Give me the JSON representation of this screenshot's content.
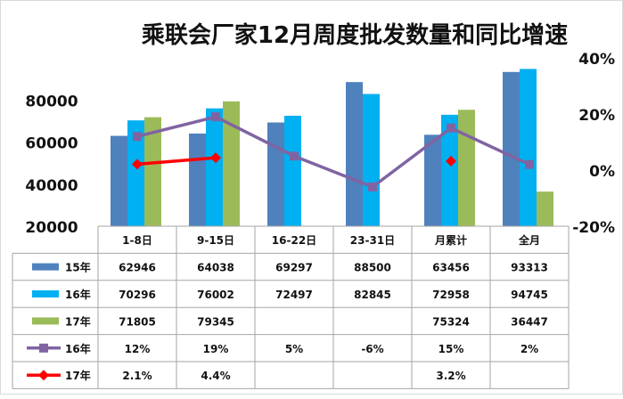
{
  "chart_data": {
    "type": "bar",
    "title": "乘联会厂家12月周度批发数量和同比增速",
    "categories": [
      "1-8日",
      "9-15日",
      "16-22日",
      "23-31日",
      "月累计",
      "全月"
    ],
    "y_left": {
      "ticks": [
        "20000",
        "40000",
        "60000",
        "80000"
      ],
      "ylim": [
        20000,
        100000
      ]
    },
    "y_right": {
      "ticks": [
        "40%",
        "20%",
        "0%",
        "-20%"
      ],
      "ylim": [
        -0.2,
        0.4
      ]
    },
    "grid": false,
    "legend": "table-bottom",
    "series": [
      {
        "name": "15年",
        "kind": "bar",
        "axis": "left",
        "color": "#4f81bd",
        "marker": "square",
        "values": [
          62946,
          64038,
          69297,
          88500,
          63456,
          93313
        ],
        "labels": [
          "62946",
          "64038",
          "69297",
          "88500",
          "63456",
          "93313"
        ]
      },
      {
        "name": "16年",
        "kind": "bar",
        "axis": "left",
        "color": "#00b0f0",
        "marker": "square",
        "values": [
          70296,
          76002,
          72497,
          82845,
          72958,
          94745
        ],
        "labels": [
          "70296",
          "76002",
          "72497",
          "82845",
          "72958",
          "94745"
        ]
      },
      {
        "name": "17年",
        "kind": "bar",
        "axis": "left",
        "color": "#9bbb59",
        "marker": "square",
        "values": [
          71805,
          79345,
          null,
          null,
          75324,
          36447
        ],
        "labels": [
          "71805",
          "79345",
          "",
          "",
          "75324",
          "36447"
        ]
      },
      {
        "name": "16年",
        "kind": "line",
        "axis": "right",
        "color": "#8064a2",
        "marker": "square",
        "values": [
          0.12,
          0.19,
          0.05,
          -0.06,
          0.15,
          0.02
        ],
        "labels": [
          "12%",
          "19%",
          "5%",
          "-6%",
          "15%",
          "2%"
        ],
        "connect": true
      },
      {
        "name": "17年",
        "kind": "line",
        "axis": "right",
        "color": "#ff0000",
        "marker": "diamond",
        "values": [
          0.021,
          0.044,
          null,
          null,
          0.032,
          null
        ],
        "labels": [
          "2.1%",
          "4.4%",
          "",
          "",
          "3.2%",
          ""
        ],
        "connect": [
          [
            0,
            1
          ]
        ]
      }
    ]
  }
}
